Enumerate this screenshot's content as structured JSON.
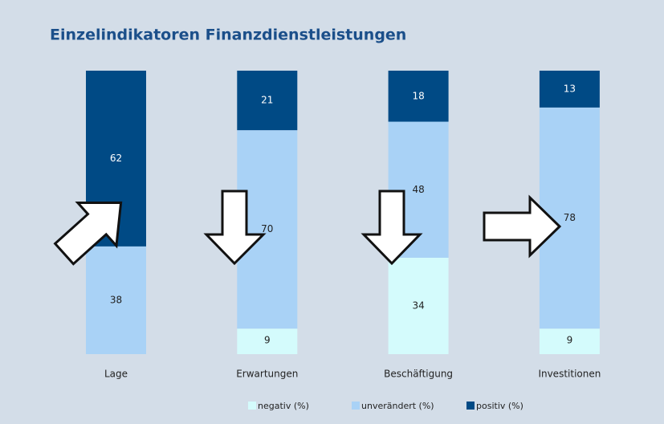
{
  "chart_data": {
    "type": "stacked-bar",
    "title": "Einzelindikatoren Finanzdienstleistungen",
    "categories": [
      "Lage",
      "Erwartungen",
      "Beschäftigung",
      "Investitionen"
    ],
    "series": [
      {
        "name": "negativ (%)",
        "color": "#d4fbfc",
        "values": [
          0,
          9,
          34,
          9
        ]
      },
      {
        "name": "unverändert (%)",
        "color": "#a9d2f6",
        "values": [
          38,
          70,
          48,
          78
        ]
      },
      {
        "name": "positiv (%)",
        "color": "#004a85",
        "values": [
          62,
          21,
          18,
          13
        ]
      }
    ]
  }
}
